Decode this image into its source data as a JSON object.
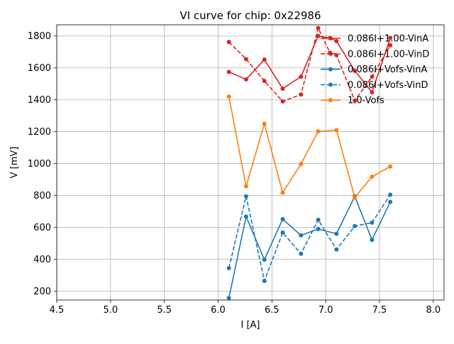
{
  "chart_data": {
    "type": "line",
    "title": "VI curve for chip: 0x22986",
    "xlabel": "I [A]",
    "ylabel": "V [mV]",
    "xlim": [
      4.5,
      8.1
    ],
    "ylim": [
      145,
      1870
    ],
    "xticks": [
      4.5,
      5.0,
      5.5,
      6.0,
      6.5,
      7.0,
      7.5,
      8.0
    ],
    "xtick_labels": [
      "4.5",
      "5.0",
      "5.5",
      "6.0",
      "6.5",
      "7.0",
      "7.5",
      "8.0"
    ],
    "yticks": [
      200,
      400,
      600,
      800,
      1000,
      1200,
      1400,
      1600,
      1800
    ],
    "ytick_labels": [
      "200",
      "400",
      "600",
      "800",
      "1000",
      "1200",
      "1400",
      "1600",
      "1800"
    ],
    "grid": true,
    "legend_position": "upper-right",
    "series": [
      {
        "name": "0.086I+1.00-VinA",
        "color": "#d62728",
        "linestyle": "solid",
        "x": [
          6.1,
          6.26,
          6.43,
          6.6,
          6.77,
          6.93,
          7.04,
          7.1,
          7.27,
          7.43,
          7.6
        ],
        "y": [
          1575,
          1528,
          1652,
          1470,
          1545,
          1800,
          1787,
          1768,
          1582,
          1447,
          1788
        ]
      },
      {
        "name": "0.086I+1.00-VinD",
        "color": "#d62728",
        "linestyle": "dashed",
        "x": [
          6.1,
          6.26,
          6.43,
          6.6,
          6.77,
          6.93,
          7.04,
          7.1,
          7.27,
          7.43,
          7.6
        ],
        "y": [
          1763,
          1655,
          1518,
          1390,
          1433,
          1850,
          1695,
          1680,
          1395,
          1545,
          1742
        ]
      },
      {
        "name": "0.086I+Vofs-VinA",
        "color": "#1f77b4",
        "linestyle": "solid",
        "x": [
          6.1,
          6.26,
          6.43,
          6.6,
          6.77,
          6.93,
          7.1,
          7.27,
          7.43,
          7.6
        ],
        "y": [
          158,
          668,
          398,
          652,
          550,
          590,
          560,
          795,
          522,
          760
        ]
      },
      {
        "name": "0.086I+Vofs-VinD",
        "color": "#1f77b4",
        "linestyle": "dashed",
        "x": [
          6.1,
          6.26,
          6.43,
          6.6,
          6.77,
          6.93,
          7.1,
          7.27,
          7.43,
          7.6
        ],
        "y": [
          345,
          795,
          265,
          568,
          435,
          648,
          462,
          608,
          630,
          805
        ]
      },
      {
        "name": "1.0-Vofs",
        "color": "#ff7f0e",
        "linestyle": "solid",
        "x": [
          6.1,
          6.26,
          6.43,
          6.6,
          6.77,
          6.93,
          7.1,
          7.27,
          7.43,
          7.6
        ],
        "y": [
          1420,
          858,
          1250,
          818,
          998,
          1202,
          1210,
          788,
          918,
          982
        ]
      }
    ]
  }
}
